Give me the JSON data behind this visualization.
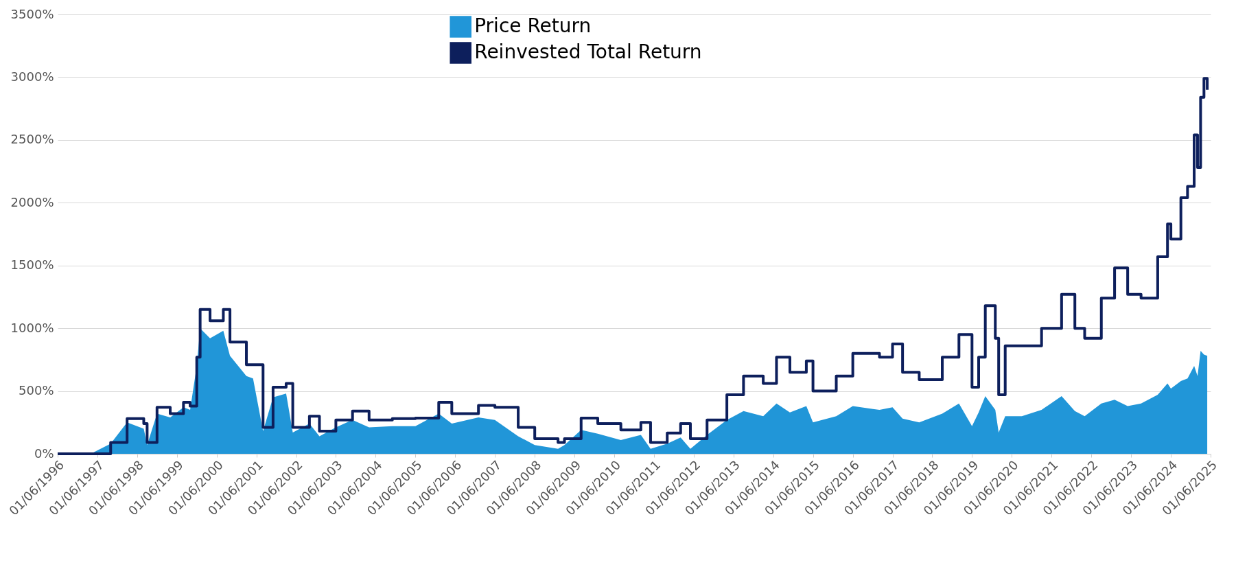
{
  "chart_data": {
    "type": "area",
    "x": [
      "1996-06",
      "1997-04",
      "1997-10",
      "1998-03",
      "1998-08",
      "1998-09",
      "1998-12",
      "1999-04",
      "1999-08",
      "1999-10",
      "1999-12",
      "2000-01",
      "2000-04",
      "2000-08",
      "2000-10",
      "2001-03",
      "2001-05",
      "2001-08",
      "2001-11",
      "2002-03",
      "2002-05",
      "2002-10",
      "2003-01",
      "2003-06",
      "2003-11",
      "2004-04",
      "2004-11",
      "2005-06",
      "2006-01",
      "2006-05",
      "2007-01",
      "2007-06",
      "2008-01",
      "2008-06",
      "2009-01",
      "2009-03",
      "2009-08",
      "2010-01",
      "2010-08",
      "2011-02",
      "2011-05",
      "2011-10",
      "2012-02",
      "2012-05",
      "2012-10",
      "2013-04",
      "2013-09",
      "2014-03",
      "2014-07",
      "2014-11",
      "2015-04",
      "2015-06",
      "2016-01",
      "2016-06",
      "2017-02",
      "2017-06",
      "2017-09",
      "2018-02",
      "2018-09",
      "2019-02",
      "2019-06",
      "2019-08",
      "2019-10",
      "2020-01",
      "2020-02",
      "2020-04",
      "2020-09",
      "2021-03",
      "2021-09",
      "2022-01",
      "2022-04",
      "2022-09",
      "2023-01",
      "2023-05",
      "2023-09",
      "2024-02",
      "2024-05",
      "2024-06",
      "2024-09",
      "2024-11",
      "2025-01",
      "2025-02",
      "2025-03",
      "2025-04",
      "2025-05"
    ],
    "series": [
      {
        "name": "Price Return",
        "color": "#2196d8",
        "values": [
          0,
          0,
          80,
          250,
          200,
          70,
          320,
          290,
          370,
          350,
          700,
          1000,
          920,
          980,
          780,
          620,
          600,
          180,
          450,
          480,
          170,
          240,
          140,
          210,
          270,
          210,
          220,
          220,
          320,
          240,
          290,
          270,
          140,
          70,
          40,
          70,
          190,
          160,
          110,
          150,
          40,
          80,
          130,
          40,
          150,
          270,
          340,
          300,
          400,
          330,
          380,
          250,
          300,
          380,
          350,
          370,
          280,
          250,
          320,
          400,
          220,
          330,
          460,
          350,
          170,
          300,
          300,
          350,
          460,
          340,
          300,
          400,
          430,
          380,
          400,
          470,
          560,
          520,
          580,
          600,
          700,
          620,
          820,
          790,
          780
        ]
      },
      {
        "name": "Reinvested Total Return",
        "type": "step",
        "color": "#0d1f5c",
        "values": [
          0,
          0,
          90,
          280,
          240,
          90,
          370,
          320,
          410,
          380,
          770,
          1150,
          1060,
          1150,
          890,
          710,
          710,
          210,
          530,
          560,
          210,
          300,
          180,
          270,
          340,
          270,
          280,
          285,
          410,
          320,
          385,
          370,
          210,
          120,
          90,
          120,
          285,
          240,
          190,
          250,
          90,
          165,
          240,
          120,
          270,
          470,
          620,
          560,
          770,
          650,
          740,
          500,
          620,
          800,
          770,
          875,
          650,
          590,
          770,
          950,
          530,
          770,
          1180,
          920,
          470,
          860,
          860,
          1000,
          1270,
          1000,
          920,
          1240,
          1480,
          1270,
          1240,
          1570,
          1830,
          1710,
          2040,
          2130,
          2540,
          2280,
          2840,
          2990,
          2900
        ]
      }
    ],
    "xlim": [
      "1996-06-01",
      "2025-06-01"
    ],
    "xticks": [
      {
        "value": "1996-06-01",
        "label": "01/06/1996"
      },
      {
        "value": "1997-06-01",
        "label": "01/06/1997"
      },
      {
        "value": "1998-06-01",
        "label": "01/06/1998"
      },
      {
        "value": "1999-06-01",
        "label": "01/06/1999"
      },
      {
        "value": "2000-06-01",
        "label": "01/06/2000"
      },
      {
        "value": "2001-06-01",
        "label": "01/06/2001"
      },
      {
        "value": "2002-06-01",
        "label": "01/06/2002"
      },
      {
        "value": "2003-06-01",
        "label": "01/06/2003"
      },
      {
        "value": "2004-06-01",
        "label": "01/06/2004"
      },
      {
        "value": "2005-06-01",
        "label": "01/06/2005"
      },
      {
        "value": "2006-06-01",
        "label": "01/06/2006"
      },
      {
        "value": "2007-06-01",
        "label": "01/06/2007"
      },
      {
        "value": "2008-06-01",
        "label": "01/06/2008"
      },
      {
        "value": "2009-06-01",
        "label": "01/06/2009"
      },
      {
        "value": "2010-06-01",
        "label": "01/06/2010"
      },
      {
        "value": "2011-06-01",
        "label": "01/06/2011"
      },
      {
        "value": "2012-06-01",
        "label": "01/06/2012"
      },
      {
        "value": "2013-06-01",
        "label": "01/06/2013"
      },
      {
        "value": "2014-06-01",
        "label": "01/06/2014"
      },
      {
        "value": "2015-06-01",
        "label": "01/06/2015"
      },
      {
        "value": "2016-06-01",
        "label": "01/06/2016"
      },
      {
        "value": "2017-06-01",
        "label": "01/06/2017"
      },
      {
        "value": "2018-06-01",
        "label": "01/06/2018"
      },
      {
        "value": "2019-06-01",
        "label": "01/06/2019"
      },
      {
        "value": "2020-06-01",
        "label": "01/06/2020"
      },
      {
        "value": "2021-06-01",
        "label": "01/06/2021"
      },
      {
        "value": "2022-06-01",
        "label": "01/06/2022"
      },
      {
        "value": "2023-06-01",
        "label": "01/06/2023"
      },
      {
        "value": "2024-06-01",
        "label": "01/06/2024"
      },
      {
        "value": "2025-06-01",
        "label": "01/06/2025"
      }
    ],
    "ylim": [
      0,
      3500
    ],
    "yticks": [
      {
        "value": 0,
        "label": "0%"
      },
      {
        "value": 500,
        "label": "500%"
      },
      {
        "value": 1000,
        "label": "1000%"
      },
      {
        "value": 1500,
        "label": "1500%"
      },
      {
        "value": 2000,
        "label": "2000%"
      },
      {
        "value": 2500,
        "label": "2500%"
      },
      {
        "value": 3000,
        "label": "3000%"
      },
      {
        "value": 3500,
        "label": "3500%"
      }
    ],
    "grid": "y",
    "legend": "top"
  }
}
